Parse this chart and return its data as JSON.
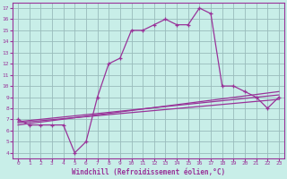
{
  "xlabel": "Windchill (Refroidissement éolien,°C)",
  "xlim": [
    -0.5,
    23.5
  ],
  "ylim": [
    3.5,
    17.5
  ],
  "xticks": [
    0,
    1,
    2,
    3,
    4,
    5,
    6,
    7,
    8,
    9,
    10,
    11,
    12,
    13,
    14,
    15,
    16,
    17,
    18,
    19,
    20,
    21,
    22,
    23
  ],
  "yticks": [
    4,
    5,
    6,
    7,
    8,
    9,
    10,
    11,
    12,
    13,
    14,
    15,
    16,
    17
  ],
  "bg_color": "#c8eee8",
  "grid_color": "#99bbbb",
  "line_color": "#993399",
  "line1_x": [
    0,
    1,
    2,
    3,
    4,
    5,
    6,
    7,
    8,
    9,
    10,
    11,
    12,
    13,
    14,
    15,
    16,
    17,
    18,
    19,
    20,
    21,
    22,
    23
  ],
  "line1_y": [
    7.0,
    6.5,
    6.5,
    6.5,
    6.5,
    4.0,
    5.0,
    9.0,
    12.0,
    12.5,
    15.0,
    15.0,
    15.5,
    16.0,
    15.5,
    15.5,
    17.0,
    16.5,
    10.0,
    10.0,
    9.5,
    9.0,
    8.0,
    9.0
  ],
  "line2_x": [
    0,
    23
  ],
  "line2_y": [
    6.8,
    9.2
  ],
  "line3_x": [
    0,
    23
  ],
  "line3_y": [
    6.7,
    8.8
  ],
  "line4_x": [
    0,
    23
  ],
  "line4_y": [
    6.5,
    9.5
  ]
}
